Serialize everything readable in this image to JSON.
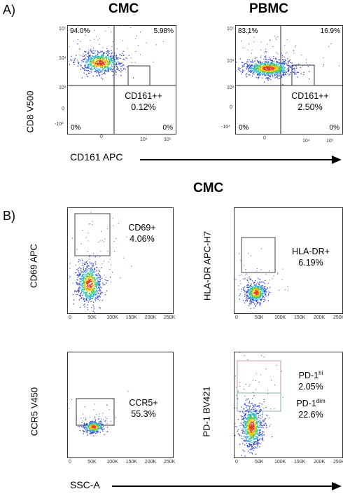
{
  "panel_a": {
    "tag": "A)",
    "x_axis": "CD161 APC",
    "y_axis": "CD8 V500",
    "plots": [
      {
        "title": "CMC",
        "q_ul": "94.0%",
        "q_ur": "5.98%",
        "q_ll": "0%",
        "q_lr": "0%",
        "gate_name": "CD161++",
        "gate_value": "0.12%"
      },
      {
        "title": "PBMC",
        "q_ul": "83.1%",
        "q_ur": "16.9%",
        "q_ll": "0%",
        "q_lr": "0%",
        "gate_name": "CD161++",
        "gate_value": "2.50%"
      }
    ],
    "y_ticks": [
      "10⁵",
      "10⁴",
      "10³",
      "0",
      "-10³"
    ],
    "x_ticks": [
      "0",
      "10⁴",
      "10⁵"
    ]
  },
  "panel_b": {
    "tag": "B)",
    "title": "CMC",
    "x_axis": "SSC-A",
    "x_ticks": [
      "0",
      "50K",
      "100K",
      "150K",
      "200K",
      "250K"
    ],
    "plots": [
      {
        "y_axis": "CD69 APC",
        "gate_name": "CD69+",
        "gate_value": "4.06%"
      },
      {
        "y_axis": "HLA-DR APC-H7",
        "gate_name": "HLA-DR+",
        "gate_value": "6.19%"
      },
      {
        "y_axis": "CCR5 V450",
        "gate_name": "CCR5+",
        "gate_value": "55.3%"
      },
      {
        "y_axis": "PD-1 BV421",
        "gate_hi_name": "PD-1",
        "gate_hi_sup": "hi",
        "gate_hi_value": "2.05%",
        "gate_dim_name": "PD-1",
        "gate_dim_sup": "dim",
        "gate_dim_value": "22.6%"
      }
    ]
  },
  "chart_data": [
    {
      "type": "scatter",
      "title": "CMC",
      "xlabel": "CD161 APC",
      "ylabel": "CD8 V500",
      "quadrants": {
        "upper_left": 94.0,
        "upper_right": 5.98,
        "lower_left": 0,
        "lower_right": 0
      },
      "gates": [
        {
          "name": "CD161++",
          "percent": 0.12
        }
      ]
    },
    {
      "type": "scatter",
      "title": "PBMC",
      "xlabel": "CD161 APC",
      "ylabel": "CD8 V500",
      "quadrants": {
        "upper_left": 83.1,
        "upper_right": 16.9,
        "lower_left": 0,
        "lower_right": 0
      },
      "gates": [
        {
          "name": "CD161++",
          "percent": 2.5
        }
      ]
    },
    {
      "type": "scatter",
      "xlabel": "SSC-A",
      "ylabel": "CD69 APC",
      "xlim": [
        0,
        250000
      ],
      "gates": [
        {
          "name": "CD69+",
          "percent": 4.06
        }
      ]
    },
    {
      "type": "scatter",
      "xlabel": "SSC-A",
      "ylabel": "HLA-DR APC-H7",
      "xlim": [
        0,
        250000
      ],
      "gates": [
        {
          "name": "HLA-DR+",
          "percent": 6.19
        }
      ]
    },
    {
      "type": "scatter",
      "xlabel": "SSC-A",
      "ylabel": "CCR5 V450",
      "xlim": [
        0,
        250000
      ],
      "gates": [
        {
          "name": "CCR5+",
          "percent": 55.3
        }
      ]
    },
    {
      "type": "scatter",
      "xlabel": "SSC-A",
      "ylabel": "PD-1 BV421",
      "xlim": [
        0,
        250000
      ],
      "gates": [
        {
          "name": "PD-1 hi",
          "percent": 2.05
        },
        {
          "name": "PD-1 dim",
          "percent": 22.6
        }
      ]
    }
  ]
}
